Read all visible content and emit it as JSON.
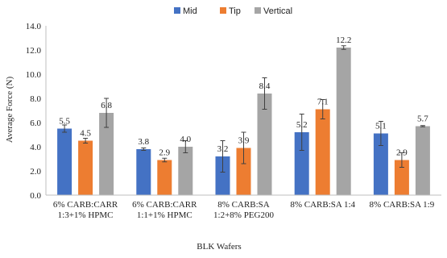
{
  "chart_data": {
    "type": "bar",
    "title": "",
    "xlabel": "BLK Wafers",
    "ylabel": "Average Force (N)",
    "ylim": [
      0,
      14
    ],
    "yticks": [
      "0.0",
      "2.0",
      "4.0",
      "6.0",
      "8.0",
      "10.0",
      "12.0",
      "14.0"
    ],
    "grid": false,
    "legend_position": "top",
    "error_bars": true,
    "categories": [
      [
        "6% CARB:CARR",
        "1:3+1% HPMC"
      ],
      [
        "6% CARB:CARR",
        "1:1+1% HPMC"
      ],
      [
        "8% CARB:SA",
        "1:2+8% PEG200"
      ],
      [
        "8% CARB:SA 1:4"
      ],
      [
        "8% CARB:SA 1:9"
      ]
    ],
    "series": [
      {
        "name": "Mid",
        "color": "#4472C4",
        "values": [
          5.5,
          3.8,
          3.2,
          5.2,
          5.1
        ],
        "errors": [
          0.3,
          0.1,
          1.3,
          1.5,
          1.0
        ],
        "labels": [
          "5.5",
          "3.8",
          "3.2",
          "5.2",
          "5.1"
        ]
      },
      {
        "name": "Tip",
        "color": "#ED7D31",
        "values": [
          4.5,
          2.9,
          3.9,
          7.1,
          2.9
        ],
        "errors": [
          0.2,
          0.15,
          1.3,
          0.8,
          0.6
        ],
        "labels": [
          "4.5",
          "2.9",
          "3.9",
          "7.1",
          "2.9"
        ]
      },
      {
        "name": "Vertical",
        "color": "#A5A5A5",
        "values": [
          6.8,
          4.0,
          8.4,
          12.2,
          5.7
        ],
        "errors": [
          1.2,
          0.5,
          1.3,
          0.15,
          0.05
        ],
        "labels": [
          "6.8",
          "4.0",
          "8.4",
          "12.2",
          "5.7"
        ]
      }
    ]
  }
}
